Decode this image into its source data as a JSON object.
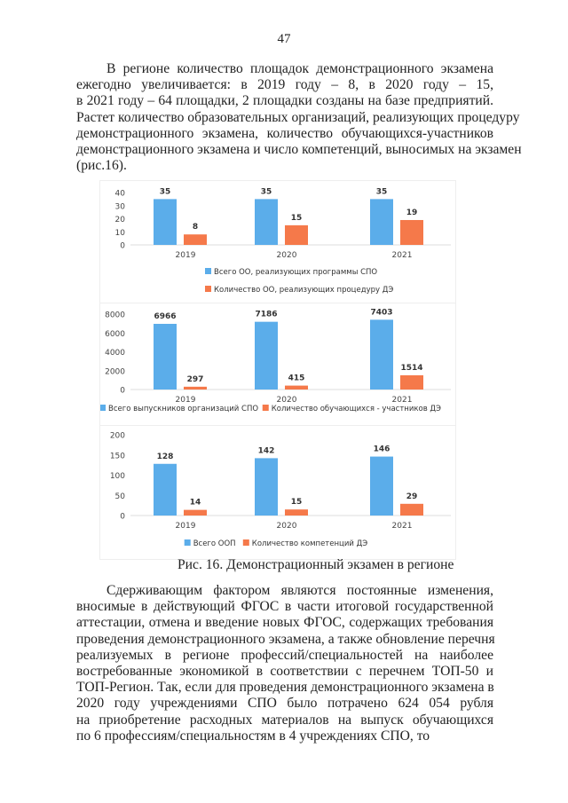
{
  "page_number": "47",
  "paragraph1": [
    "В регионе количество площадок демонстрационного экзамена",
    "ежегодно увеличивается: в 2019 году – 8, в 2020 году – 15,",
    "в 2021 году – 64 площадки, 2 площадки созданы на базе предприятий.",
    "Растет количество образовательных организаций, реализующих процедуру",
    "демонстрационного экзамена, количество обучающихся-участников",
    "демонстрационного экзамена и число компетенций, выносимых на экзамен",
    "(рис.16)."
  ],
  "caption": "Рис. 16. Демонстрационный экзамен в регионе",
  "paragraph2": [
    "Сдерживающим фактором являются постоянные изменения,",
    "вносимые в действующий ФГОС в части итоговой государственной",
    "аттестации, отмена и введение новых ФГОС, содержащих требования",
    "проведения демонстрационного экзамена, а также обновление перечня",
    "реализуемых в регионе профессий/специальностей на наиболее",
    "востребованные экономикой в соответствии с перечнем ТОП-50 и",
    "ТОП-Регион.  Так, если для проведения демонстрационного экзамена в",
    "2020 году учреждениями СПО было потрачено 624 054 рубля",
    "на приобретение расходных материалов на выпуск обучающихся",
    "по 6 профессиям/специальностям в 4 учреждениях СПО, то"
  ],
  "colors": {
    "series1": "#5badea",
    "series2": "#f5794a"
  },
  "chart_data": [
    {
      "type": "bar",
      "categories": [
        "2019",
        "2020",
        "2021"
      ],
      "series": [
        {
          "name": "Всего ОО, реализующих программы СПО",
          "values": [
            35,
            35,
            35
          ]
        },
        {
          "name": "Количество ОО, реализующих процедуру ДЭ",
          "values": [
            8,
            15,
            19
          ]
        }
      ],
      "yticks": [
        "0",
        "10",
        "20",
        "30",
        "40"
      ],
      "ylim": [
        0,
        40
      ],
      "grid": false,
      "legend": "bottom-stacked"
    },
    {
      "type": "bar",
      "categories": [
        "2019",
        "2020",
        "2021"
      ],
      "series": [
        {
          "name": "Всего выпускников организаций СПО",
          "values": [
            6966,
            7186,
            7403
          ]
        },
        {
          "name": "Количество обучающихся - участников ДЭ",
          "values": [
            297,
            415,
            1514
          ]
        }
      ],
      "yticks": [
        "0",
        "2000",
        "4000",
        "6000",
        "8000"
      ],
      "ylim": [
        0,
        8000
      ],
      "grid": false,
      "legend": "bottom"
    },
    {
      "type": "bar",
      "categories": [
        "2019",
        "2020",
        "2021"
      ],
      "series": [
        {
          "name": "Всего ООП",
          "values": [
            128,
            142,
            146
          ]
        },
        {
          "name": "Количество компетенций ДЭ",
          "values": [
            14,
            15,
            29
          ]
        }
      ],
      "yticks": [
        "0",
        "50",
        "100",
        "150",
        "200"
      ],
      "ylim": [
        0,
        200
      ],
      "grid": false,
      "legend": "bottom"
    }
  ]
}
